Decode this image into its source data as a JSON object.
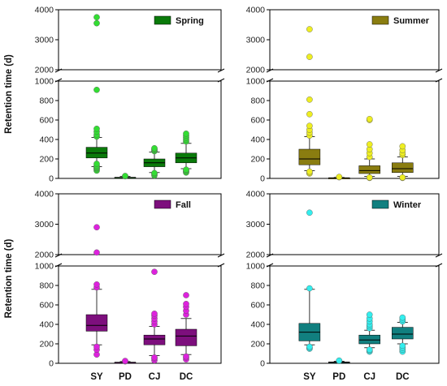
{
  "figure": {
    "ylabel": "Retention time (d)",
    "categories": [
      "SY",
      "PD",
      "CJ",
      "DC"
    ]
  },
  "chart_data": [
    {
      "type": "box",
      "title": "Spring",
      "color": "#0a7a0a",
      "outlier_color": "#33dd33",
      "categories": [
        "SY",
        "PD",
        "CJ",
        "DC"
      ],
      "ylabel": "Retention time (d)",
      "y_break": [
        1000,
        2000
      ],
      "ylim_lower": [
        0,
        1000
      ],
      "ylim_upper": [
        2000,
        4000
      ],
      "yticks": [
        0,
        200,
        400,
        600,
        800,
        1000,
        2000,
        3000,
        4000
      ],
      "boxes": [
        {
          "category": "SY",
          "whisker_low": 120,
          "q1": 210,
          "median": 260,
          "q3": 320,
          "whisker_high": 420,
          "outliers": [
            80,
            95,
            105,
            115,
            130,
            150,
            430,
            450,
            480,
            510,
            910,
            3550,
            3750
          ]
        },
        {
          "category": "PD",
          "whisker_low": 2,
          "q1": 5,
          "median": 8,
          "q3": 12,
          "whisker_high": 20,
          "outliers": [
            22,
            25
          ]
        },
        {
          "category": "CJ",
          "whisker_low": 60,
          "q1": 120,
          "median": 160,
          "q3": 200,
          "whisker_high": 270,
          "outliers": [
            30,
            45,
            55,
            280,
            290,
            300,
            310
          ]
        },
        {
          "category": "DC",
          "whisker_low": 100,
          "q1": 160,
          "median": 210,
          "q3": 260,
          "whisker_high": 360,
          "outliers": [
            60,
            70,
            80,
            90,
            380,
            400,
            420,
            440,
            460
          ]
        }
      ]
    },
    {
      "type": "box",
      "title": "Summer",
      "color": "#8a7d10",
      "outlier_color": "#eeee22",
      "categories": [
        "SY",
        "PD",
        "CJ",
        "DC"
      ],
      "ylabel": "",
      "y_break": [
        1000,
        2000
      ],
      "ylim_lower": [
        0,
        1000
      ],
      "ylim_upper": [
        2000,
        4000
      ],
      "yticks": [
        0,
        200,
        400,
        600,
        800,
        1000,
        2000,
        3000,
        4000
      ],
      "boxes": [
        {
          "category": "SY",
          "whisker_low": 80,
          "q1": 140,
          "median": 200,
          "q3": 300,
          "whisker_high": 430,
          "outliers": [
            50,
            60,
            70,
            440,
            470,
            500,
            540,
            660,
            810,
            2430,
            3350
          ]
        },
        {
          "category": "PD",
          "whisker_low": 1,
          "q1": 3,
          "median": 5,
          "q3": 7,
          "whisker_high": 10,
          "outliers": [
            12,
            15
          ]
        },
        {
          "category": "CJ",
          "whisker_low": 20,
          "q1": 50,
          "median": 80,
          "q3": 130,
          "whisker_high": 200,
          "outliers": [
            5,
            10,
            220,
            260,
            300,
            350,
            600,
            610
          ]
        },
        {
          "category": "DC",
          "whisker_low": 20,
          "q1": 60,
          "median": 100,
          "q3": 160,
          "whisker_high": 220,
          "outliers": [
            5,
            10,
            240,
            260,
            290,
            330
          ]
        }
      ]
    },
    {
      "type": "box",
      "title": "Fall",
      "color": "#7d0f7d",
      "outlier_color": "#dd22dd",
      "categories": [
        "SY",
        "PD",
        "CJ",
        "DC"
      ],
      "ylabel": "Retention time (d)",
      "y_break": [
        1000,
        2000
      ],
      "ylim_lower": [
        0,
        1000
      ],
      "ylim_upper": [
        2000,
        4000
      ],
      "yticks": [
        0,
        200,
        400,
        600,
        800,
        1000,
        2000,
        3000,
        4000
      ],
      "boxes": [
        {
          "category": "SY",
          "whisker_low": 190,
          "q1": 330,
          "median": 390,
          "q3": 500,
          "whisker_high": 760,
          "outliers": [
            90,
            140,
            170,
            780,
            810,
            2070,
            2900
          ]
        },
        {
          "category": "PD",
          "whisker_low": 2,
          "q1": 5,
          "median": 8,
          "q3": 12,
          "whisker_high": 18,
          "outliers": [
            20,
            24
          ]
        },
        {
          "category": "CJ",
          "whisker_low": 80,
          "q1": 190,
          "median": 250,
          "q3": 290,
          "whisker_high": 380,
          "outliers": [
            30,
            50,
            60,
            400,
            430,
            460,
            490,
            510,
            940
          ]
        },
        {
          "category": "DC",
          "whisker_low": 90,
          "q1": 180,
          "median": 280,
          "q3": 350,
          "whisker_high": 460,
          "outliers": [
            40,
            60,
            70,
            500,
            540,
            580,
            610,
            700
          ]
        }
      ]
    },
    {
      "type": "box",
      "title": "Winter",
      "color": "#117f7f",
      "outlier_color": "#33eeee",
      "categories": [
        "SY",
        "PD",
        "CJ",
        "DC"
      ],
      "ylabel": "",
      "y_break": [
        1000,
        2000
      ],
      "ylim_lower": [
        0,
        1000
      ],
      "ylim_upper": [
        2000,
        4000
      ],
      "yticks": [
        0,
        200,
        400,
        600,
        800,
        1000,
        2000,
        3000,
        4000
      ],
      "boxes": [
        {
          "category": "SY",
          "whisker_low": 190,
          "q1": 230,
          "median": 320,
          "q3": 410,
          "whisker_high": 760,
          "outliers": [
            150,
            160,
            170,
            770,
            3380
          ]
        },
        {
          "category": "PD",
          "whisker_low": 2,
          "q1": 6,
          "median": 10,
          "q3": 14,
          "whisker_high": 20,
          "outliers": [
            24,
            28
          ]
        },
        {
          "category": "CJ",
          "whisker_low": 160,
          "q1": 200,
          "median": 240,
          "q3": 290,
          "whisker_high": 340,
          "outliers": [
            120,
            130,
            140,
            360,
            380,
            400,
            430,
            460,
            500
          ]
        },
        {
          "category": "DC",
          "whisker_low": 200,
          "q1": 250,
          "median": 300,
          "q3": 370,
          "whisker_high": 420,
          "outliers": [
            120,
            140,
            160,
            180,
            430,
            450,
            470
          ]
        }
      ]
    }
  ]
}
